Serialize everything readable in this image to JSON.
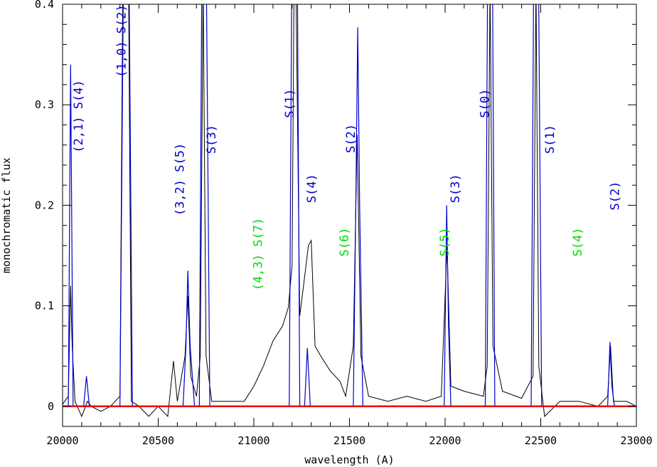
{
  "chart_data": {
    "type": "line",
    "title": "",
    "xlabel": "wavelength (A)",
    "ylabel": "monochromatic flux",
    "xlim": [
      20000,
      23000
    ],
    "ylim": [
      -0.02,
      0.4
    ],
    "x_ticks": [
      20000,
      20500,
      21000,
      21500,
      22000,
      22500,
      23000
    ],
    "y_ticks": [
      0,
      0.1,
      0.2,
      0.3,
      0.4
    ],
    "y_tick_labels": [
      "0",
      "0.1",
      "0.2",
      "0.3",
      "0.4"
    ],
    "grid": false,
    "colors": {
      "observed": "#000000",
      "model_blue": "#0000cc",
      "model_green": "#00cc00",
      "model_magenta": "#cc00cc",
      "baseline": "#ee0000",
      "label_blue": "#0000cc",
      "label_green": "#00dd00"
    },
    "series": [
      {
        "x": [
          20000,
          20030,
          20042,
          20050,
          20065,
          20100,
          20130,
          20150,
          20200,
          20250,
          20300,
          20315,
          20330,
          20345,
          20360,
          20400,
          20450,
          20500,
          20550,
          20580,
          20600,
          20640,
          20655,
          20670,
          20700,
          20720,
          20735,
          20750,
          20780,
          20850,
          20950,
          21000,
          21050,
          21100,
          21150,
          21180,
          21200,
          21210,
          21220,
          21240,
          21260,
          21285,
          21300,
          21320,
          21350,
          21400,
          21450,
          21480,
          21520,
          21540,
          21560,
          21600,
          21700,
          21800,
          21900,
          21980,
          22010,
          22030,
          22100,
          22200,
          22220,
          22235,
          22250,
          22300,
          22400,
          22460,
          22475,
          22490,
          22520,
          22600,
          22700,
          22800,
          22850,
          22865,
          22880,
          22950,
          23000
        ],
        "y": [
          0.002,
          0.01,
          0.12,
          0.06,
          0.005,
          -0.01,
          0.005,
          0.0,
          -0.005,
          0.0,
          0.01,
          0.42,
          0.42,
          0.42,
          0.005,
          0.0,
          -0.01,
          0.0,
          -0.01,
          0.045,
          0.005,
          0.05,
          0.11,
          0.03,
          0.01,
          0.05,
          0.42,
          0.05,
          0.005,
          0.005,
          0.005,
          0.02,
          0.04,
          0.065,
          0.08,
          0.098,
          0.14,
          0.42,
          0.42,
          0.09,
          0.12,
          0.16,
          0.165,
          0.06,
          0.05,
          0.035,
          0.025,
          0.01,
          0.06,
          0.27,
          0.05,
          0.01,
          0.005,
          0.01,
          0.005,
          0.01,
          0.16,
          0.02,
          0.015,
          0.01,
          0.04,
          0.42,
          0.06,
          0.015,
          0.008,
          0.03,
          0.42,
          0.04,
          -0.01,
          0.005,
          0.005,
          0.0,
          0.01,
          0.06,
          0.005,
          0.005,
          0.0
        ]
      },
      {
        "x": [
          20000,
          20030,
          20042,
          20055,
          20110,
          20125,
          20140,
          20300,
          20318,
          20333,
          20348,
          20365,
          20630,
          20645,
          20655,
          20667,
          20690,
          20715,
          20728,
          20740,
          20752,
          20770,
          21185,
          21198,
          21213,
          21228,
          21240,
          21265,
          21280,
          21295,
          21520,
          21533,
          21543,
          21553,
          21570,
          21995,
          22008,
          22018,
          22030,
          22210,
          22222,
          22235,
          22248,
          22260,
          22450,
          22463,
          22476,
          22489,
          22505,
          22850,
          22862,
          22872,
          22885,
          23000
        ],
        "y": [
          0.0,
          0.0,
          0.34,
          0.0,
          0.0,
          0.03,
          0.0,
          0.0,
          0.42,
          0.42,
          0.42,
          0.0,
          0.0,
          0.06,
          0.135,
          0.06,
          0.0,
          0.0,
          0.42,
          0.42,
          0.42,
          0.0,
          0.0,
          0.42,
          0.42,
          0.42,
          0.0,
          0.0,
          0.058,
          0.0,
          0.0,
          0.2,
          0.377,
          0.2,
          0.0,
          0.0,
          0.2,
          0.08,
          0.0,
          0.0,
          0.42,
          0.42,
          0.42,
          0.0,
          0.0,
          0.42,
          0.42,
          0.42,
          0.0,
          0.0,
          0.064,
          0.02,
          0.0,
          0.0
        ]
      }
    ],
    "line_labels": [
      {
        "text": "(2,1) S(4)",
        "x": 20085,
        "y": 0.2885,
        "color": "#0000cc"
      },
      {
        "text": "(1,0) S(2)",
        "x": 20310,
        "y": 0.3635,
        "color": "#0000cc"
      },
      {
        "text": "(3,2) S(5)",
        "x": 20615,
        "y": 0.2258,
        "color": "#0000cc"
      },
      {
        "text": "S(3)",
        "x": 20780,
        "y": 0.2657,
        "color": "#0000cc"
      },
      {
        "text": "S(1)",
        "x": 21190,
        "y": 0.3015,
        "color": "#0000cc"
      },
      {
        "text": "S(4)",
        "x": 21305,
        "y": 0.2168,
        "color": "#0000cc"
      },
      {
        "text": "S(2)",
        "x": 21510,
        "y": 0.2665,
        "color": "#0000cc"
      },
      {
        "text": "S(3)",
        "x": 22055,
        "y": 0.2168,
        "color": "#0000cc"
      },
      {
        "text": "S(0)",
        "x": 22210,
        "y": 0.3015,
        "color": "#0000cc"
      },
      {
        "text": "S(1)",
        "x": 22550,
        "y": 0.2657,
        "color": "#0000cc"
      },
      {
        "text": "S(2)",
        "x": 22890,
        "y": 0.2095,
        "color": "#0000cc"
      },
      {
        "text": "(4,3) S(7)",
        "x": 21025,
        "y": 0.1515,
        "color": "#00dd00"
      },
      {
        "text": "S(6)",
        "x": 21475,
        "y": 0.1635,
        "color": "#00dd00"
      },
      {
        "text": "S(5)",
        "x": 22000,
        "y": 0.1635,
        "color": "#00dd00"
      },
      {
        "text": "S(4)",
        "x": 22695,
        "y": 0.1635,
        "color": "#00dd00"
      }
    ]
  }
}
